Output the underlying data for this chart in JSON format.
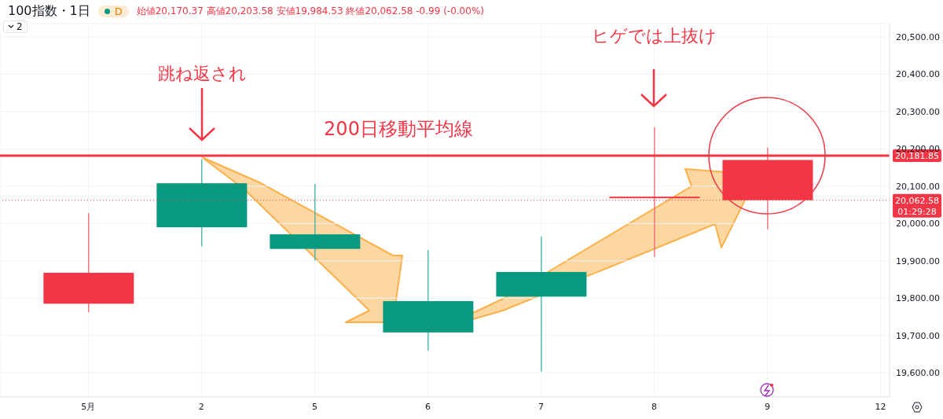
{
  "chart_data": {
    "type": "candlestick",
    "title": "100指数・1日",
    "subtitle": "始値20,170.37 高値20,203.58 安値19,984.53 終値20,062.58 -0.99 (-0.00%)",
    "categories": [
      "5月",
      "2",
      "5",
      "6",
      "7",
      "8",
      "9",
      "12"
    ],
    "ohlc": [
      [
        19868,
        20028,
        19762,
        19785
      ],
      [
        19990,
        20172,
        19939,
        20108
      ],
      [
        19932,
        20106,
        19901,
        19971
      ],
      [
        19708,
        19929,
        19659,
        19792
      ],
      [
        19804,
        19965,
        19603,
        19870
      ],
      [
        20072,
        20258,
        19910,
        20068
      ],
      [
        20170.37,
        20203.58,
        19984.53,
        20062.58
      ],
      null
    ],
    "colors": [
      "#f23645",
      "#089981",
      "#089981",
      "#089981",
      "#089981",
      "#f23645",
      "#f23645",
      null
    ],
    "ylim": [
      19535,
      20536
    ],
    "yticks": [
      {
        "value": 19600,
        "label": "19,600.00"
      },
      {
        "value": 19700,
        "label": "19,700.00"
      },
      {
        "value": 19800,
        "label": "19,800.00"
      },
      {
        "value": 19900,
        "label": "19,900.00"
      },
      {
        "value": 20000,
        "label": "20,000.00"
      },
      {
        "value": 20100,
        "label": "20,100.00"
      },
      {
        "value": 20200,
        "label": "20,200.00"
      },
      {
        "value": 20300,
        "label": "20,300.00"
      },
      {
        "value": 20400,
        "label": "20,400.00"
      },
      {
        "value": 20500,
        "label": "20,500.00"
      }
    ],
    "grid": true,
    "ref_lines": [
      {
        "axis": "y",
        "value": 20181.85,
        "label": "20,181.85",
        "color": "#f23645",
        "line_style": "solid"
      },
      {
        "axis": "y",
        "value": 20062.58,
        "label": "20,062.58",
        "color": "#f23645",
        "line_style": "dotted"
      }
    ],
    "annotations": [
      "跳ね返され",
      "ヒゲでは上抜け",
      "200日移動平均線",
      "01:29:28",
      "D",
      "2"
    ]
  }
}
